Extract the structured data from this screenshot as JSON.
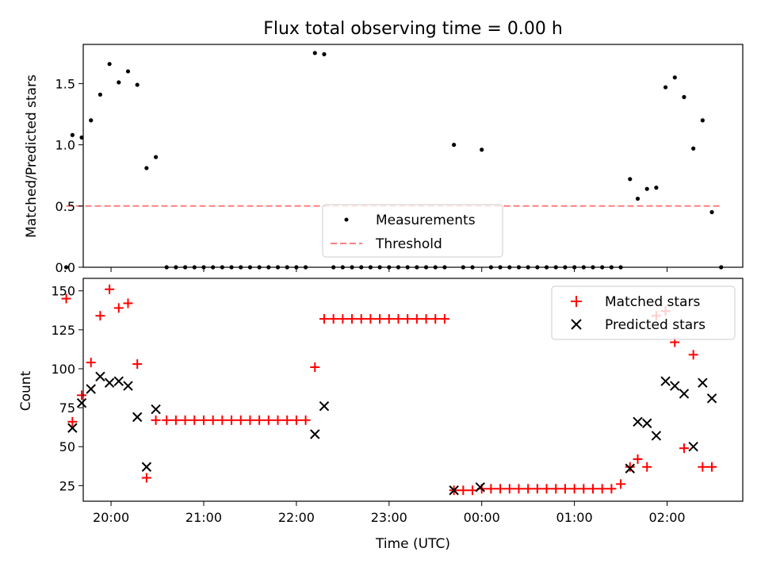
{
  "chart_data": [
    {
      "type": "scatter",
      "title": "Flux total observing time = 0.00 h",
      "xlabel": "",
      "ylabel": "Matched/Predicted stars",
      "xlim": [
        "19:42",
        "02:49"
      ],
      "ylim": [
        0,
        1.82
      ],
      "yticks": [
        "0.0",
        "0.5",
        "1.0",
        "1.5"
      ],
      "ytick_values": [
        0,
        0.5,
        1.0,
        1.5
      ],
      "grid": false,
      "legend": "lower-center",
      "series": [
        {
          "name": "Measurements",
          "marker": "dot",
          "color": "#000000",
          "points": [
            [
              "19:31",
              0
            ],
            [
              "19:35",
              1.08
            ],
            [
              "19:41",
              1.06
            ],
            [
              "19:47",
              1.2
            ],
            [
              "19:53",
              1.41
            ],
            [
              "19:59",
              1.66
            ],
            [
              "20:05",
              1.51
            ],
            [
              "20:11",
              1.6
            ],
            [
              "20:17",
              1.49
            ],
            [
              "20:23",
              0.81
            ],
            [
              "20:29",
              0.9
            ],
            [
              "20:36",
              0
            ],
            [
              "20:42",
              0
            ],
            [
              "20:48",
              0
            ],
            [
              "20:54",
              0
            ],
            [
              "21:00",
              0
            ],
            [
              "21:06",
              0
            ],
            [
              "21:12",
              0
            ],
            [
              "21:18",
              0
            ],
            [
              "21:24",
              0
            ],
            [
              "21:30",
              0
            ],
            [
              "21:36",
              0
            ],
            [
              "21:42",
              0
            ],
            [
              "21:48",
              0
            ],
            [
              "21:54",
              0
            ],
            [
              "22:00",
              0
            ],
            [
              "22:06",
              0
            ],
            [
              "22:12",
              1.75
            ],
            [
              "22:18",
              1.74
            ],
            [
              "22:24",
              0
            ],
            [
              "22:30",
              0
            ],
            [
              "22:36",
              0
            ],
            [
              "22:42",
              0
            ],
            [
              "22:48",
              0
            ],
            [
              "22:54",
              0
            ],
            [
              "23:00",
              0
            ],
            [
              "23:06",
              0
            ],
            [
              "23:12",
              0
            ],
            [
              "23:18",
              0
            ],
            [
              "23:24",
              0
            ],
            [
              "23:30",
              0
            ],
            [
              "23:36",
              0
            ],
            [
              "23:42",
              1.0
            ],
            [
              "23:48",
              0
            ],
            [
              "23:54",
              0
            ],
            [
              "00:00",
              0.96
            ],
            [
              "00:06",
              0
            ],
            [
              "00:12",
              0
            ],
            [
              "00:18",
              0
            ],
            [
              "00:24",
              0
            ],
            [
              "00:30",
              0
            ],
            [
              "00:36",
              0
            ],
            [
              "00:42",
              0
            ],
            [
              "00:48",
              0
            ],
            [
              "00:54",
              0
            ],
            [
              "01:00",
              0
            ],
            [
              "01:06",
              0
            ],
            [
              "01:12",
              0
            ],
            [
              "01:18",
              0
            ],
            [
              "01:24",
              0
            ],
            [
              "01:30",
              0
            ],
            [
              "01:36",
              0.72
            ],
            [
              "01:41",
              0.56
            ],
            [
              "01:47",
              0.64
            ],
            [
              "01:53",
              0.65
            ],
            [
              "01:59",
              1.47
            ],
            [
              "02:05",
              1.55
            ],
            [
              "02:11",
              1.39
            ],
            [
              "02:17",
              0.97
            ],
            [
              "02:23",
              1.2
            ],
            [
              "02:29",
              0.45
            ],
            [
              "02:35",
              0
            ]
          ]
        },
        {
          "name": "Threshold",
          "marker": "dashed-line",
          "color": "#ff7f7f",
          "points": [
            [
              "19:31",
              0.5
            ],
            [
              "02:35",
              0.5
            ]
          ]
        }
      ]
    },
    {
      "type": "scatter",
      "title": "",
      "xlabel": "Time (UTC)",
      "ylabel": "Count",
      "xlim": [
        "19:42",
        "02:49"
      ],
      "ylim": [
        15,
        158
      ],
      "yticks": [
        "25",
        "50",
        "75",
        "100",
        "125",
        "150"
      ],
      "ytick_values": [
        25,
        50,
        75,
        100,
        125,
        150
      ],
      "xticks": [
        "20:00",
        "21:00",
        "22:00",
        "23:00",
        "00:00",
        "01:00",
        "02:00"
      ],
      "grid": false,
      "legend": "top-right",
      "series": [
        {
          "name": "Matched stars",
          "marker": "plus",
          "color": "#ff0000",
          "points": [
            [
              "19:31",
              145
            ],
            [
              "19:35",
              66
            ],
            [
              "19:41",
              83
            ],
            [
              "19:47",
              104
            ],
            [
              "19:53",
              134
            ],
            [
              "19:59",
              151
            ],
            [
              "20:05",
              139
            ],
            [
              "20:11",
              142
            ],
            [
              "20:17",
              103
            ],
            [
              "20:23",
              30
            ],
            [
              "20:29",
              67
            ],
            [
              "20:36",
              67
            ],
            [
              "20:42",
              67
            ],
            [
              "20:48",
              67
            ],
            [
              "20:54",
              67
            ],
            [
              "21:00",
              67
            ],
            [
              "21:06",
              67
            ],
            [
              "21:12",
              67
            ],
            [
              "21:18",
              67
            ],
            [
              "21:24",
              67
            ],
            [
              "21:30",
              67
            ],
            [
              "21:36",
              67
            ],
            [
              "21:42",
              67
            ],
            [
              "21:48",
              67
            ],
            [
              "21:54",
              67
            ],
            [
              "22:00",
              67
            ],
            [
              "22:06",
              67
            ],
            [
              "22:12",
              101
            ],
            [
              "22:18",
              132
            ],
            [
              "22:24",
              132
            ],
            [
              "22:30",
              132
            ],
            [
              "22:36",
              132
            ],
            [
              "22:42",
              132
            ],
            [
              "22:48",
              132
            ],
            [
              "22:54",
              132
            ],
            [
              "23:00",
              132
            ],
            [
              "23:06",
              132
            ],
            [
              "23:12",
              132
            ],
            [
              "23:18",
              132
            ],
            [
              "23:24",
              132
            ],
            [
              "23:30",
              132
            ],
            [
              "23:36",
              132
            ],
            [
              "23:42",
              22
            ],
            [
              "23:48",
              22
            ],
            [
              "23:54",
              22
            ],
            [
              "00:00",
              23
            ],
            [
              "00:06",
              23
            ],
            [
              "00:12",
              23
            ],
            [
              "00:18",
              23
            ],
            [
              "00:24",
              23
            ],
            [
              "00:30",
              23
            ],
            [
              "00:36",
              23
            ],
            [
              "00:42",
              23
            ],
            [
              "00:48",
              23
            ],
            [
              "00:54",
              23
            ],
            [
              "01:00",
              23
            ],
            [
              "01:06",
              23
            ],
            [
              "01:12",
              23
            ],
            [
              "01:18",
              23
            ],
            [
              "01:24",
              23
            ],
            [
              "01:30",
              26
            ],
            [
              "01:36",
              37
            ],
            [
              "01:41",
              42
            ],
            [
              "01:47",
              37
            ],
            [
              "01:53",
              134
            ],
            [
              "01:59",
              137
            ],
            [
              "02:05",
              117
            ],
            [
              "02:11",
              49
            ],
            [
              "02:17",
              109
            ],
            [
              "02:23",
              37
            ],
            [
              "02:29",
              37
            ]
          ]
        },
        {
          "name": "Predicted stars",
          "marker": "x",
          "color": "#000000",
          "points": [
            [
              "19:35",
              62
            ],
            [
              "19:41",
              78
            ],
            [
              "19:47",
              87
            ],
            [
              "19:53",
              95
            ],
            [
              "19:59",
              91
            ],
            [
              "20:05",
              92
            ],
            [
              "20:11",
              89
            ],
            [
              "20:17",
              69
            ],
            [
              "20:23",
              37
            ],
            [
              "20:29",
              74
            ],
            [
              "22:12",
              58
            ],
            [
              "22:18",
              76
            ],
            [
              "23:42",
              22
            ],
            [
              "23:59",
              24
            ],
            [
              "01:36",
              36
            ],
            [
              "01:41",
              66
            ],
            [
              "01:47",
              65
            ],
            [
              "01:53",
              57
            ],
            [
              "01:59",
              92
            ],
            [
              "02:05",
              89
            ],
            [
              "02:11",
              84
            ],
            [
              "02:17",
              50
            ],
            [
              "02:23",
              91
            ],
            [
              "02:29",
              81
            ]
          ]
        }
      ]
    }
  ]
}
